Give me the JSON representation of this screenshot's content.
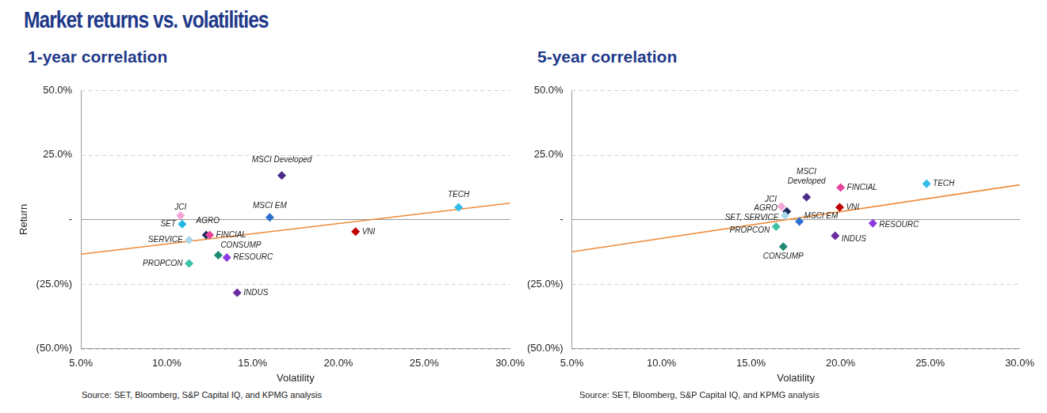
{
  "title": "Market returns vs. volatilities",
  "chart_data": [
    {
      "type": "scatter",
      "title": "1-year correlation",
      "x_label": "Volatility",
      "y_label": "Return",
      "source": "Source: SET, Bloomberg, S&P Capital IQ, and KPMG analysis",
      "labels": [
        "JCI",
        "SET",
        "AGRO",
        "FINCIAL",
        "SERVICE",
        "PROPCON",
        "CONSUMP",
        "RESOURC",
        "INDUS",
        "MSCI Developed",
        "MSCI EM",
        "VNI",
        "TECH"
      ],
      "x": [
        10.8,
        10.9,
        12.3,
        12.5,
        11.3,
        11.3,
        13.0,
        13.5,
        14.1,
        16.7,
        16.0,
        21.0,
        27.0
      ],
      "values": [
        1.5,
        -1.8,
        -6.0,
        -6.0,
        -8.0,
        -17.0,
        -13.8,
        -14.7,
        -28.3,
        17.0,
        0.8,
        -4.7,
        4.7
      ],
      "colors": [
        "#f4a6d7",
        "#22b5e8",
        "#1f2a5c",
        "#e8449a",
        "#a9d8ec",
        "#3cc0a8",
        "#1e8a74",
        "#8a3be0",
        "#6a2ca0",
        "#4b2a88",
        "#2f6fd0",
        "#c00000",
        "#33bbe8"
      ],
      "trend_line": {
        "x": [
          5,
          30
        ],
        "values": [
          -13.4,
          6.3
        ],
        "color": "#ed8b3a"
      },
      "xlim": [
        5,
        30
      ],
      "xticks": [
        {
          "value": 5,
          "label": "5.0%"
        },
        {
          "value": 10,
          "label": "10.0%"
        },
        {
          "value": 15,
          "label": "15.0%"
        },
        {
          "value": 20,
          "label": "20.0%"
        },
        {
          "value": 25,
          "label": "25.0%"
        },
        {
          "value": 30,
          "label": "30.0%"
        }
      ],
      "ylim": [
        -50,
        50
      ],
      "yticks": [
        {
          "value": -50,
          "label": "(50.0%)"
        },
        {
          "value": -25,
          "label": "(25.0%)"
        },
        {
          "value": 0,
          "label": "-"
        },
        {
          "value": 25,
          "label": "25.0%"
        },
        {
          "value": 50,
          "label": "50.0%"
        }
      ],
      "grid": true
    },
    {
      "type": "scatter",
      "title": "5-year correlation",
      "x_label": "Volatility",
      "source": "Source: SET, Bloomberg, S&P Capital IQ, and KPMG analysis",
      "labels": [
        "MSCI Developed",
        "FINCIAL",
        "TECH",
        "JCI",
        "AGRO",
        "SET, SERVICE",
        "MSCI EM",
        "PROPCON",
        "VNI",
        "RESOURC",
        "INDUS",
        "CONSUMP"
      ],
      "x": [
        18.1,
        20.0,
        24.8,
        16.7,
        17.0,
        16.9,
        17.7,
        16.4,
        19.95,
        21.8,
        19.7,
        16.8
      ],
      "values": [
        8.6,
        12.4,
        13.8,
        5.0,
        3.1,
        1.5,
        -0.8,
        -2.8,
        4.7,
        -1.5,
        -6.3,
        -10.5
      ],
      "colors": [
        "#4b2a88",
        "#e8449a",
        "#33bbe8",
        "#f4a6d7",
        "#1f2a5c",
        "#a9d8ec",
        "#2f6fd0",
        "#3cc0a8",
        "#c00000",
        "#8a3be0",
        "#6a2ca0",
        "#1e8a74"
      ],
      "trend_line": {
        "x": [
          5,
          30
        ],
        "values": [
          -12.5,
          13.4
        ],
        "color": "#ed8b3a"
      },
      "xlim": [
        5,
        30
      ],
      "xticks": [
        {
          "value": 5,
          "label": "5.0%"
        },
        {
          "value": 10,
          "label": "10.0%"
        },
        {
          "value": 15,
          "label": "15.0%"
        },
        {
          "value": 20,
          "label": "20.0%"
        },
        {
          "value": 25,
          "label": "25.0%"
        },
        {
          "value": 30,
          "label": "30.0%"
        }
      ],
      "ylim": [
        -50,
        50
      ],
      "yticks": [
        {
          "value": -50,
          "label": "(50.0%)"
        },
        {
          "value": -25,
          "label": "(25.0%)"
        },
        {
          "value": 0,
          "label": "-"
        },
        {
          "value": 25,
          "label": "25.0%"
        },
        {
          "value": 50,
          "label": "50.0%"
        }
      ],
      "grid": true
    }
  ]
}
